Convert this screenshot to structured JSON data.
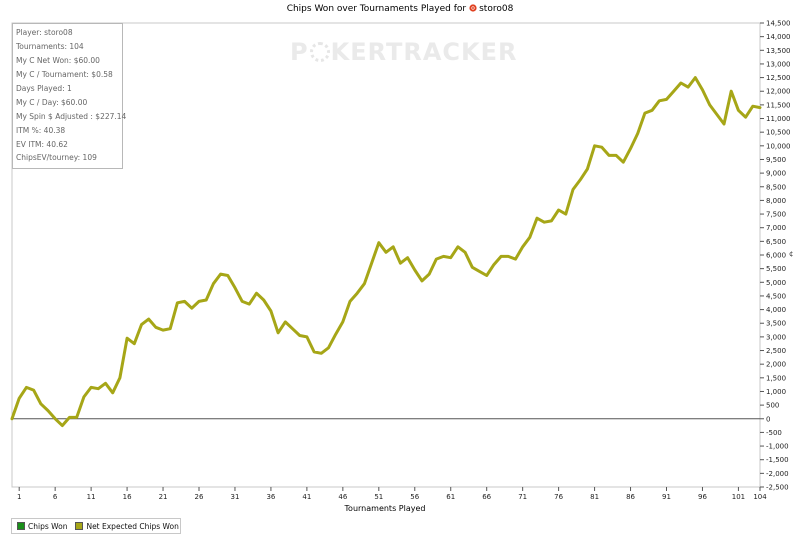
{
  "chart_data": {
    "type": "line",
    "title_prefix": "Chips Won over Tournaments Played for",
    "player_name": "storo08",
    "xlabel": "Tournaments Played",
    "ylabel": "",
    "y_axis_glyph": "¢",
    "xlim": [
      0,
      104
    ],
    "ylim": [
      -2500,
      14500
    ],
    "x_ticks": [
      1,
      6,
      11,
      16,
      21,
      26,
      31,
      36,
      41,
      46,
      51,
      56,
      61,
      66,
      71,
      76,
      81,
      86,
      91,
      96,
      101,
      104
    ],
    "y_ticks": [
      -2500,
      -2000,
      -1500,
      -1000,
      -500,
      0,
      500,
      1000,
      1500,
      2000,
      2500,
      3000,
      3500,
      4000,
      4500,
      5000,
      5500,
      6000,
      6500,
      7000,
      7500,
      8000,
      8500,
      9000,
      9500,
      10000,
      10500,
      11000,
      11500,
      12000,
      12500,
      13000,
      13500,
      14000,
      14500
    ],
    "y_tick_labels": [
      "-2,500",
      "-2,000",
      "-1,500",
      "-1,000",
      "-500",
      "0",
      "500",
      "1,000",
      "1,500",
      "2,000",
      "2,500",
      "3,000",
      "3,500",
      "4,000",
      "4,500",
      "5,000",
      "5,500",
      "6,000",
      "6,500",
      "7,000",
      "7,500",
      "8,000",
      "8,500",
      "9,000",
      "9,500",
      "10,000",
      "10,500",
      "11,000",
      "11,500",
      "12,000",
      "12,500",
      "13,000",
      "13,500",
      "14,000",
      "14,500"
    ],
    "zero_line": true,
    "grid": false,
    "legend_position": "bottom-left",
    "series": [
      {
        "name": "Chips Won",
        "color": "#1a8f1a",
        "values": []
      },
      {
        "name": "Net Expected Chips Won",
        "color": "#a6a617",
        "x": [
          0,
          1,
          2,
          3,
          4,
          5,
          6,
          7,
          8,
          9,
          10,
          11,
          12,
          13,
          14,
          15,
          16,
          17,
          18,
          19,
          20,
          21,
          22,
          23,
          24,
          25,
          26,
          27,
          28,
          29,
          30,
          31,
          32,
          33,
          34,
          35,
          36,
          37,
          38,
          39,
          40,
          41,
          42,
          43,
          44,
          45,
          46,
          47,
          48,
          49,
          50,
          51,
          52,
          53,
          54,
          55,
          56,
          57,
          58,
          59,
          60,
          61,
          62,
          63,
          64,
          65,
          66,
          67,
          68,
          69,
          70,
          71,
          72,
          73,
          74,
          75,
          76,
          77,
          78,
          79,
          80,
          81,
          82,
          83,
          84,
          85,
          86,
          87,
          88,
          89,
          90,
          91,
          92,
          93,
          94,
          95,
          96,
          97,
          98,
          99,
          100,
          101,
          102,
          103,
          104
        ],
        "values": [
          0,
          750,
          1150,
          1050,
          550,
          300,
          0,
          -250,
          50,
          50,
          800,
          1150,
          1100,
          1300,
          950,
          1500,
          2950,
          2750,
          3450,
          3650,
          3350,
          3250,
          3300,
          4250,
          4300,
          4050,
          4300,
          4350,
          4950,
          5300,
          5250,
          4800,
          4300,
          4200,
          4600,
          4350,
          3950,
          3150,
          3550,
          3300,
          3050,
          3000,
          2450,
          2400,
          2600,
          3100,
          3550,
          4300,
          4600,
          4950,
          5700,
          6450,
          6100,
          6300,
          5700,
          5900,
          5450,
          5050,
          5300,
          5850,
          5950,
          5900,
          6300,
          6100,
          5550,
          5400,
          5250,
          5650,
          5950,
          5950,
          5850,
          6300,
          6650,
          7350,
          7200,
          7250,
          7650,
          7500,
          8400,
          8750,
          9150,
          10000,
          9950,
          9650,
          9650,
          9400,
          9900,
          10450,
          11200,
          11300,
          11650,
          11700,
          12000,
          12300,
          12150,
          12500,
          12050,
          11500,
          11150,
          10800,
          12000,
          11300,
          11050,
          11450,
          11400
        ]
      }
    ]
  },
  "stats_panel": {
    "lines": [
      "Player: storo08",
      "Tournaments: 104",
      "My C Net Won: $60.00",
      "My C / Tournament: $0.58",
      "Days Played: 1",
      "My C / Day: $60.00",
      "My Spin $ Adjusted : $227.14",
      "ITM %: 40.38",
      "EV ITM: 40.62",
      "ChipsEV/tourney: 109"
    ]
  },
  "watermark": {
    "part1": "P",
    "part2": "KER",
    "part3": "TRACKER"
  },
  "icons": {
    "player_icon": "poker-chip-red-icon"
  }
}
